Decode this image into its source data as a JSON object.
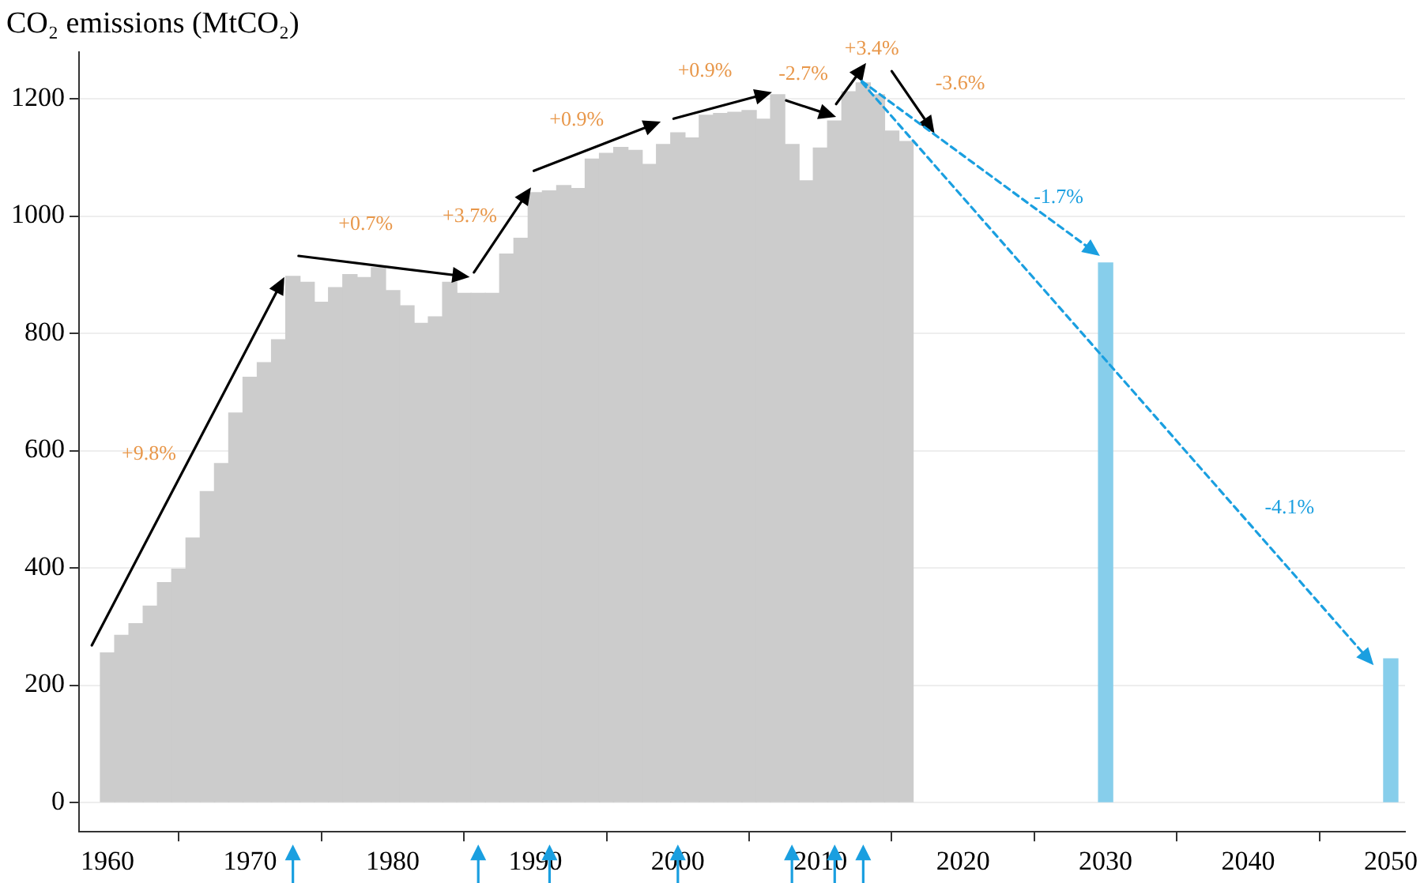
{
  "chart_data": {
    "type": "bar",
    "title": "CO₂ emissions (MtCO₂)",
    "xlim": [
      1958,
      2051
    ],
    "xticks": [
      1960,
      1970,
      1980,
      1990,
      2000,
      2010,
      2020,
      2030,
      2040,
      2050
    ],
    "ylim": [
      -50,
      1280
    ],
    "yticks": [
      0,
      200,
      400,
      600,
      800,
      1000,
      1200
    ],
    "grid": "y",
    "legend": false,
    "series": [
      {
        "color": "#cccccc",
        "x": [
          1960,
          1961,
          1962,
          1963,
          1964,
          1965,
          1966,
          1967,
          1968,
          1969,
          1970,
          1971,
          1972,
          1973,
          1974,
          1975,
          1976,
          1977,
          1978,
          1979,
          1980,
          1981,
          1982,
          1983,
          1984,
          1985,
          1986,
          1987,
          1988,
          1989,
          1990,
          1991,
          1992,
          1993,
          1994,
          1995,
          1996,
          1997,
          1998,
          1999,
          2000,
          2001,
          2002,
          2003,
          2004,
          2005,
          2006,
          2007,
          2008,
          2009,
          2010,
          2011,
          2012,
          2013,
          2014,
          2015,
          2016
        ],
        "values": [
          255,
          285,
          305,
          335,
          375,
          398,
          451,
          530,
          578,
          664,
          725,
          750,
          789,
          897,
          887,
          853,
          878,
          900,
          895,
          912,
          873,
          847,
          817,
          828,
          887,
          868,
          868,
          868,
          935,
          962,
          1040,
          1043,
          1052,
          1047,
          1097,
          1107,
          1117,
          1112,
          1088,
          1122,
          1142,
          1133,
          1172,
          1175,
          1177,
          1180,
          1165,
          1207,
          1122,
          1060,
          1116,
          1162,
          1212,
          1227,
          1207,
          1145,
          1127
        ]
      },
      {
        "color": "#87ceeb",
        "x": [
          2030,
          2050
        ],
        "values": [
          920,
          245
        ]
      }
    ],
    "annotations": [
      "+9.8%",
      "+0.7%",
      "+3.7%",
      "+0.9%",
      "+0.9%",
      "-2.7%",
      "+3.4%",
      "-3.6%",
      "-1.7%",
      "-4.1%"
    ]
  }
}
